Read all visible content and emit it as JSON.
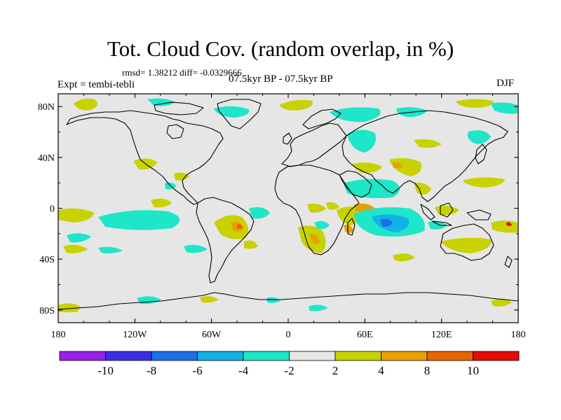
{
  "title": "Tot. Cloud Cov. (random overlap, in %)",
  "stats": "rmsd= 1.38212 diff= -0.0329666",
  "period": "07.5kyr BP - 07.5kyr BP",
  "experiment": "Expt = tembi-tebli",
  "season": "DJF",
  "axes": {
    "x_labels": [
      "180",
      "120W",
      "60W",
      "0",
      "60E",
      "120E",
      "180"
    ],
    "y_labels": [
      "80N",
      "40N",
      "0",
      "40S",
      "80S"
    ]
  },
  "colorbar": {
    "colors": [
      "#9b1ee8",
      "#3c2ee6",
      "#1e6fe6",
      "#12b2e6",
      "#1ee6c8",
      "#e6e6e6",
      "#c8d200",
      "#e6a000",
      "#e66400",
      "#e60a0a"
    ],
    "labels": [
      "-10",
      "-8",
      "-6",
      "-4",
      "-2",
      "2",
      "4",
      "8",
      "10"
    ]
  },
  "palette": {
    "background": "#e6e6e6",
    "teal": "#1ee6c8",
    "cyan": "#12b2e6",
    "blue": "#1e6fe6",
    "olive": "#c8d200",
    "orange": "#e6a000",
    "red_orange": "#e66400",
    "red": "#e60a0a"
  }
}
